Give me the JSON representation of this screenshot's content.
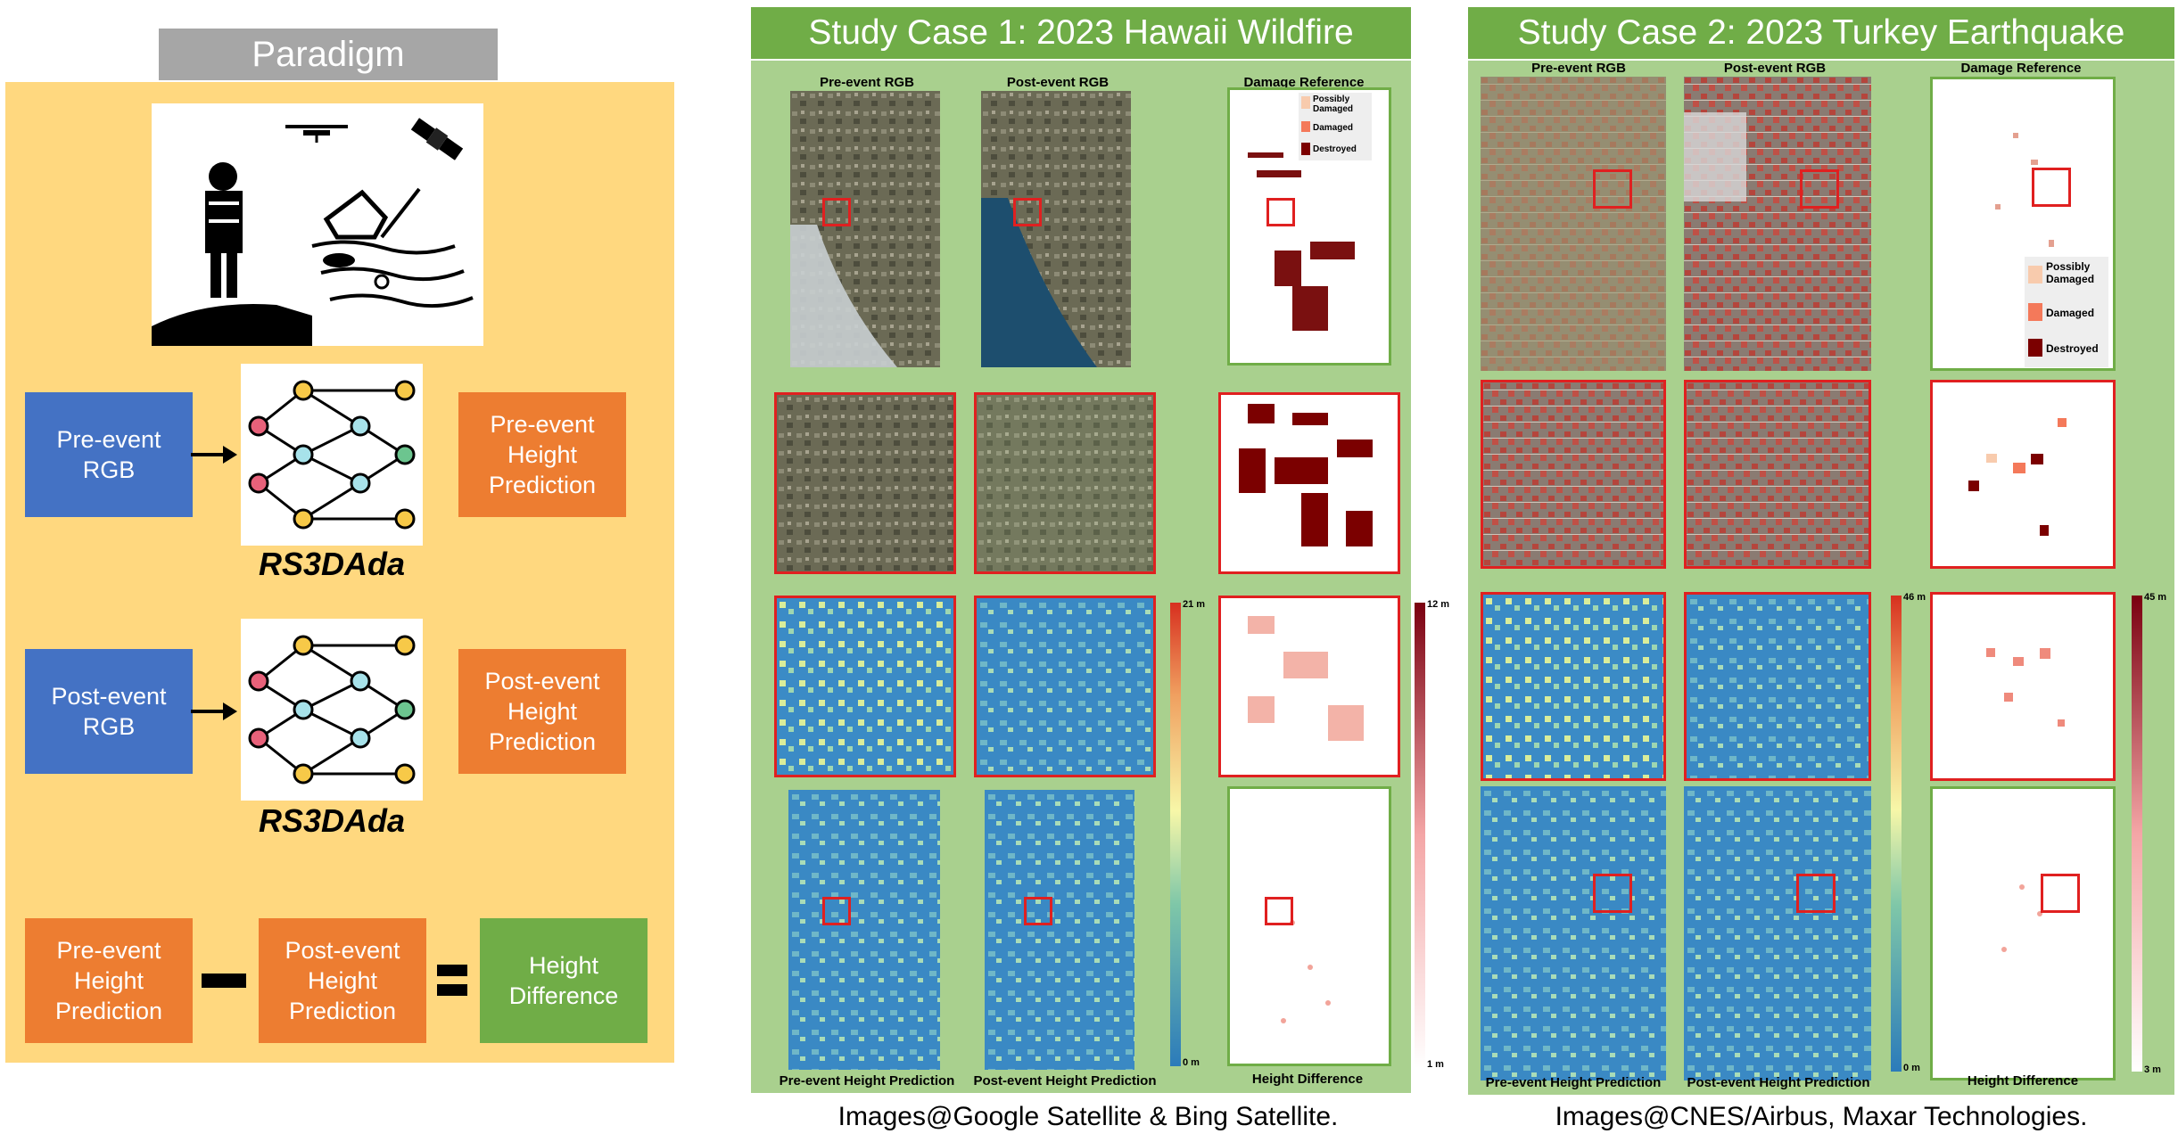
{
  "paradigm": {
    "title": "Paradigm",
    "pre_rgb": "Pre-event RGB",
    "post_rgb": "Post-event RGB",
    "model_name": "RS3DAda",
    "pre_height": "Pre-event Height Prediction",
    "post_height": "Post-event Height Prediction",
    "height_diff": "Height Difference"
  },
  "case1": {
    "title": "Study Case 1: 2023 Hawaii Wildfire",
    "col_pre": "Pre-event RGB",
    "col_post": "Post-event RGB",
    "col_ref": "Damage Reference",
    "bottom_pre": "Pre-event Height Prediction",
    "bottom_post": "Post-event Height Prediction",
    "bottom_diff": "Height Difference",
    "legend": [
      "Possibly Damaged",
      "Damaged",
      "Destroyed"
    ],
    "height_max": "21 m",
    "height_min": "0 m",
    "diff_max": "12 m",
    "diff_min": "1 m",
    "credit": "Images@Google Satellite & Bing Satellite."
  },
  "case2": {
    "title": "Study Case 2: 2023 Turkey Earthquake",
    "col_pre": "Pre-event RGB",
    "col_post": "Post-event RGB",
    "col_ref": "Damage Reference",
    "bottom_pre": "Pre-event Height Prediction",
    "bottom_post": "Post-event Height Prediction",
    "bottom_diff": "Height Difference",
    "legend": [
      "Possibly Damaged",
      "Damaged",
      "Destroyed"
    ],
    "height_max": "46 m",
    "height_min": "0 m",
    "diff_max": "45 m",
    "diff_min": "3 m",
    "credit": "Images@CNES/Airbus, Maxar Technologies."
  },
  "colors": {
    "legend_possibly": "#f8cbad",
    "legend_damaged": "#f4795a",
    "legend_destroyed": "#7b0000"
  }
}
